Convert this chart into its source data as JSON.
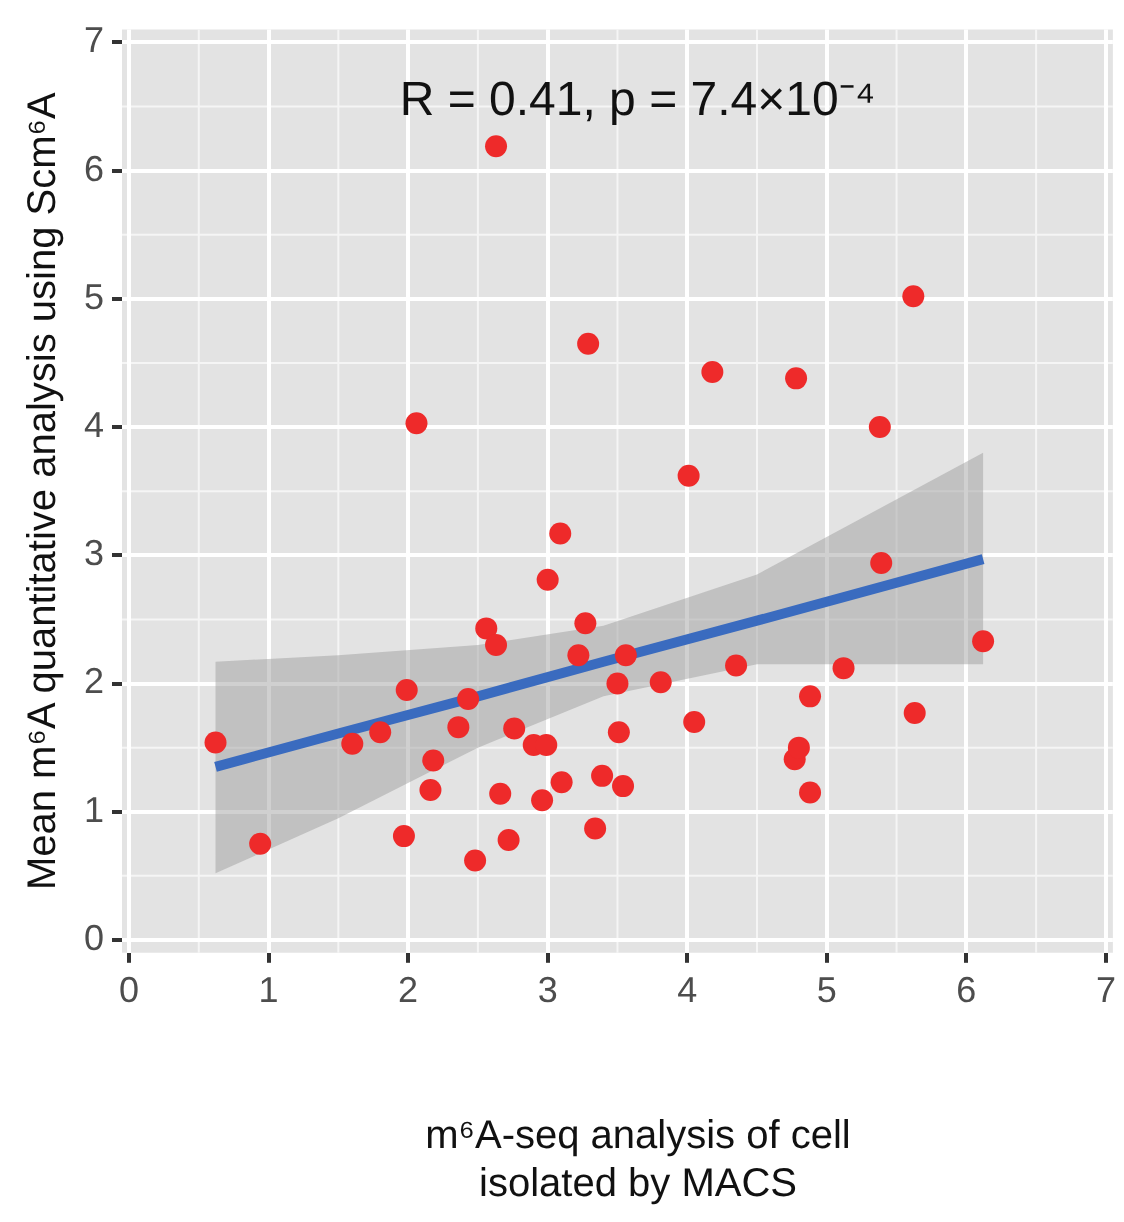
{
  "chart_data": {
    "type": "scatter",
    "ylabel": "Mean m⁶A quantitative analysis using Scm⁶A",
    "xlabel": "m⁶A-seq analysis of cell isolated by MACS",
    "annotations": [
      "R = 0.41, p = 7.4×10⁻⁴"
    ],
    "xlim": [
      -0.05,
      7.05
    ],
    "ylim": [
      -0.1,
      7.1
    ],
    "xticks": [
      0,
      1,
      2,
      3,
      4,
      5,
      6,
      7
    ],
    "yticks": [
      0,
      1,
      2,
      3,
      4,
      5,
      6,
      7
    ],
    "grid": true,
    "legend": false,
    "series": [
      {
        "marker": "circle",
        "color": "#ee2a2a",
        "x": [
          0.62,
          0.94,
          1.6,
          1.8,
          1.97,
          1.99,
          2.06,
          2.18,
          2.16,
          2.36,
          2.43,
          2.48,
          2.56,
          2.63,
          2.63,
          2.66,
          2.72,
          2.76,
          2.9,
          2.99,
          2.96,
          3.0,
          3.09,
          3.1,
          3.22,
          3.27,
          3.29,
          3.34,
          3.39,
          3.5,
          3.51,
          3.54,
          3.56,
          3.81,
          4.01,
          4.05,
          4.18,
          4.35,
          4.77,
          4.78,
          4.8,
          4.88,
          4.88,
          5.12,
          5.38,
          5.39,
          5.62,
          5.63,
          6.12
        ],
        "values": [
          1.54,
          0.75,
          1.53,
          1.62,
          0.81,
          1.95,
          4.03,
          1.4,
          1.17,
          1.66,
          1.88,
          0.62,
          2.43,
          2.3,
          6.19,
          1.14,
          0.78,
          1.65,
          1.52,
          1.52,
          1.09,
          2.81,
          3.17,
          1.23,
          2.22,
          2.47,
          4.65,
          0.87,
          1.28,
          2.0,
          1.62,
          1.2,
          2.22,
          2.01,
          3.62,
          1.7,
          4.43,
          2.14,
          1.41,
          4.38,
          1.5,
          1.9,
          1.15,
          2.12,
          4.0,
          2.94,
          5.02,
          1.77,
          2.33
        ]
      },
      {
        "type": "line",
        "marker": "none",
        "color": "#3a6bbf",
        "x": [
          0.62,
          1.5,
          2.5,
          3.4,
          4.5,
          6.12
        ],
        "values": [
          1.35,
          1.61,
          1.9,
          2.17,
          2.49,
          2.97
        ],
        "lower": [
          0.52,
          0.95,
          1.5,
          1.9,
          2.15,
          2.15
        ],
        "upper": [
          2.17,
          2.22,
          2.3,
          2.45,
          2.85,
          3.8
        ]
      }
    ]
  }
}
